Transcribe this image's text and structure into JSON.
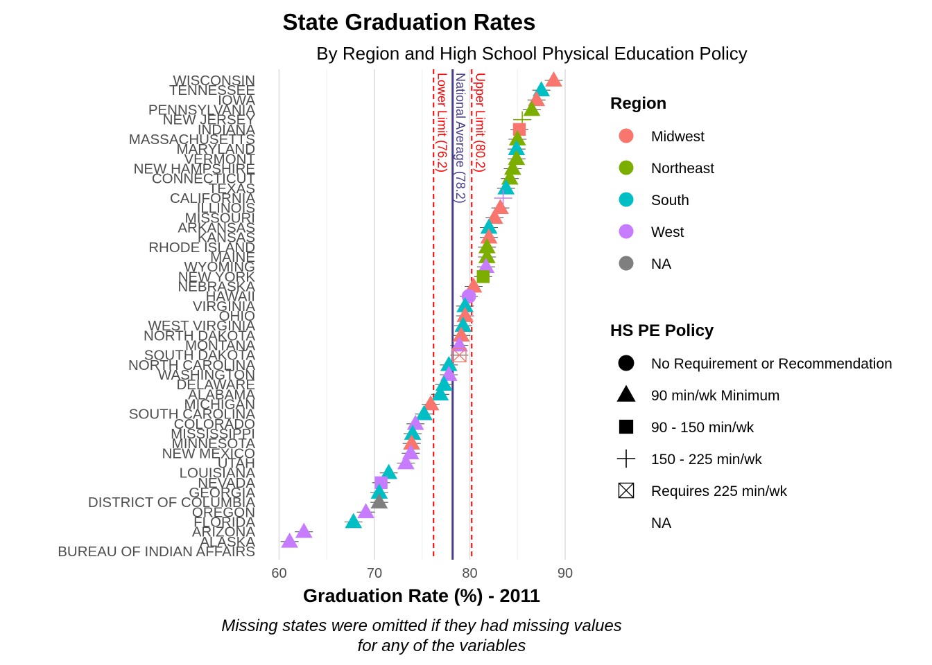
{
  "chart_data": {
    "type": "scatter",
    "title": "State Graduation Rates",
    "subtitle": "By Region and High School Physical Education Policy",
    "xlabel": "Graduation Rate (%) - 2011",
    "caption": [
      "Missing states were omitted if they had missing values",
      "for any of the variables"
    ],
    "xlim": [
      58,
      92
    ],
    "xticks": [
      60,
      70,
      80,
      90
    ],
    "grid": true,
    "legend_position": "right",
    "reference_lines": [
      {
        "label": "Lower Limit (76.2)",
        "value": 76.2,
        "style": "dashed",
        "color": "#ff0000"
      },
      {
        "label": "National Average (78.2)",
        "value": 78.2,
        "style": "solid",
        "color": "#483d8b"
      },
      {
        "label": "Upper Limit (80.2)",
        "value": 80.2,
        "style": "dashed",
        "color": "#ff0000"
      }
    ],
    "region_legend": {
      "title": "Region",
      "items": [
        {
          "label": "Midwest",
          "color": "#f8766d"
        },
        {
          "label": "Northeast",
          "color": "#7cae00"
        },
        {
          "label": "South",
          "color": "#00bfc4"
        },
        {
          "label": "West",
          "color": "#c77cff"
        },
        {
          "label": "NA",
          "color": "#7f7f7f"
        }
      ]
    },
    "policy_legend": {
      "title": "HS PE Policy",
      "items": [
        {
          "label": "No Requirement or Recommendation",
          "shape": "circle"
        },
        {
          "label": "90 min/wk Minimum",
          "shape": "triangle"
        },
        {
          "label": "90 - 150 min/wk",
          "shape": "square"
        },
        {
          "label": "150 - 225 min/wk",
          "shape": "plus"
        },
        {
          "label": "Requires 225 min/wk",
          "shape": "boxx"
        },
        {
          "label": "NA",
          "shape": "none"
        }
      ]
    },
    "states": [
      {
        "name": "WISCONSIN",
        "value": 88.8,
        "region": "Midwest",
        "policy": "triangle"
      },
      {
        "name": "TENNESSEE",
        "value": 87.5,
        "region": "South",
        "policy": "triangle"
      },
      {
        "name": "IOWA",
        "value": 87.0,
        "region": "Midwest",
        "policy": "triangle"
      },
      {
        "name": "PENNSYLVANIA",
        "value": 86.5,
        "region": "Northeast",
        "policy": "triangle"
      },
      {
        "name": "NEW JERSEY",
        "value": 85.5,
        "region": "Northeast",
        "policy": "plus"
      },
      {
        "name": "INDIANA",
        "value": 85.2,
        "region": "Midwest",
        "policy": "square"
      },
      {
        "name": "MASSACHUSETTS",
        "value": 85.0,
        "region": "Northeast",
        "policy": "triangle"
      },
      {
        "name": "MARYLAND",
        "value": 84.9,
        "region": "South",
        "policy": "triangle"
      },
      {
        "name": "VERMONT",
        "value": 84.9,
        "region": "Northeast",
        "policy": "triangle"
      },
      {
        "name": "NEW HAMPSHIRE",
        "value": 84.5,
        "region": "Northeast",
        "policy": "triangle"
      },
      {
        "name": "CONNECTICUT",
        "value": 84.2,
        "region": "Northeast",
        "policy": "triangle"
      },
      {
        "name": "TEXAS",
        "value": 83.8,
        "region": "South",
        "policy": "triangle"
      },
      {
        "name": "CALIFORNIA",
        "value": 83.5,
        "region": "West",
        "policy": "plus"
      },
      {
        "name": "ILLINOIS",
        "value": 83.2,
        "region": "Midwest",
        "policy": "triangle"
      },
      {
        "name": "MISSOURI",
        "value": 82.6,
        "region": "Midwest",
        "policy": "triangle"
      },
      {
        "name": "ARKANSAS",
        "value": 82.0,
        "region": "South",
        "policy": "triangle"
      },
      {
        "name": "KANSAS",
        "value": 82.0,
        "region": "Midwest",
        "policy": "triangle"
      },
      {
        "name": "RHODE ISLAND",
        "value": 81.8,
        "region": "Northeast",
        "policy": "triangle"
      },
      {
        "name": "MAINE",
        "value": 81.8,
        "region": "Northeast",
        "policy": "triangle"
      },
      {
        "name": "WYOMING",
        "value": 81.7,
        "region": "West",
        "policy": "triangle"
      },
      {
        "name": "NEW YORK",
        "value": 81.4,
        "region": "Northeast",
        "policy": "square"
      },
      {
        "name": "NEBRASKA",
        "value": 80.4,
        "region": "Midwest",
        "policy": "triangle"
      },
      {
        "name": "HAWAII",
        "value": 79.9,
        "region": "West",
        "policy": "circle"
      },
      {
        "name": "VIRGINIA",
        "value": 79.5,
        "region": "South",
        "policy": "triangle"
      },
      {
        "name": "OHIO",
        "value": 79.5,
        "region": "Midwest",
        "policy": "triangle"
      },
      {
        "name": "WEST VIRGINIA",
        "value": 79.3,
        "region": "South",
        "policy": "triangle"
      },
      {
        "name": "NORTH DAKOTA",
        "value": 79.1,
        "region": "Midwest",
        "policy": "triangle"
      },
      {
        "name": "MONTANA",
        "value": 78.9,
        "region": "West",
        "policy": "triangle"
      },
      {
        "name": "SOUTH DAKOTA",
        "value": 78.9,
        "region": "Midwest",
        "policy": "boxx"
      },
      {
        "name": "NORTH CAROLINA",
        "value": 77.8,
        "region": "South",
        "policy": "triangle"
      },
      {
        "name": "WASHINGTON",
        "value": 77.8,
        "region": "West",
        "policy": "triangle"
      },
      {
        "name": "DELAWARE",
        "value": 77.3,
        "region": "South",
        "policy": "triangle"
      },
      {
        "name": "ALABAMA",
        "value": 76.9,
        "region": "South",
        "policy": "triangle"
      },
      {
        "name": "MICHIGAN",
        "value": 75.9,
        "region": "Midwest",
        "policy": "triangle"
      },
      {
        "name": "SOUTH CAROLINA",
        "value": 75.2,
        "region": "South",
        "policy": "triangle"
      },
      {
        "name": "COLORADO",
        "value": 74.3,
        "region": "West",
        "policy": "triangle"
      },
      {
        "name": "MISSISSIPPI",
        "value": 74.0,
        "region": "South",
        "policy": "triangle"
      },
      {
        "name": "MINNESOTA",
        "value": 73.9,
        "region": "Midwest",
        "policy": "triangle"
      },
      {
        "name": "NEW MEXICO",
        "value": 73.8,
        "region": "West",
        "policy": "triangle"
      },
      {
        "name": "UTAH",
        "value": 73.3,
        "region": "West",
        "policy": "triangle"
      },
      {
        "name": "LOUISIANA",
        "value": 71.5,
        "region": "South",
        "policy": "triangle"
      },
      {
        "name": "NEVADA",
        "value": 70.7,
        "region": "West",
        "policy": "square"
      },
      {
        "name": "GEORGIA",
        "value": 70.5,
        "region": "South",
        "policy": "triangle"
      },
      {
        "name": "DISTRICT OF COLUMBIA",
        "value": 70.5,
        "region": "NA",
        "policy": "triangle"
      },
      {
        "name": "OREGON",
        "value": 69.1,
        "region": "West",
        "policy": "triangle"
      },
      {
        "name": "FLORIDA",
        "value": 67.8,
        "region": "South",
        "policy": "triangle"
      },
      {
        "name": "ARIZONA",
        "value": 62.6,
        "region": "West",
        "policy": "triangle"
      },
      {
        "name": "ALASKA",
        "value": 61.1,
        "region": "West",
        "policy": "triangle"
      },
      {
        "name": "BUREAU OF INDIAN AFFAIRS",
        "value": null,
        "region": "NA",
        "policy": "none"
      }
    ]
  }
}
